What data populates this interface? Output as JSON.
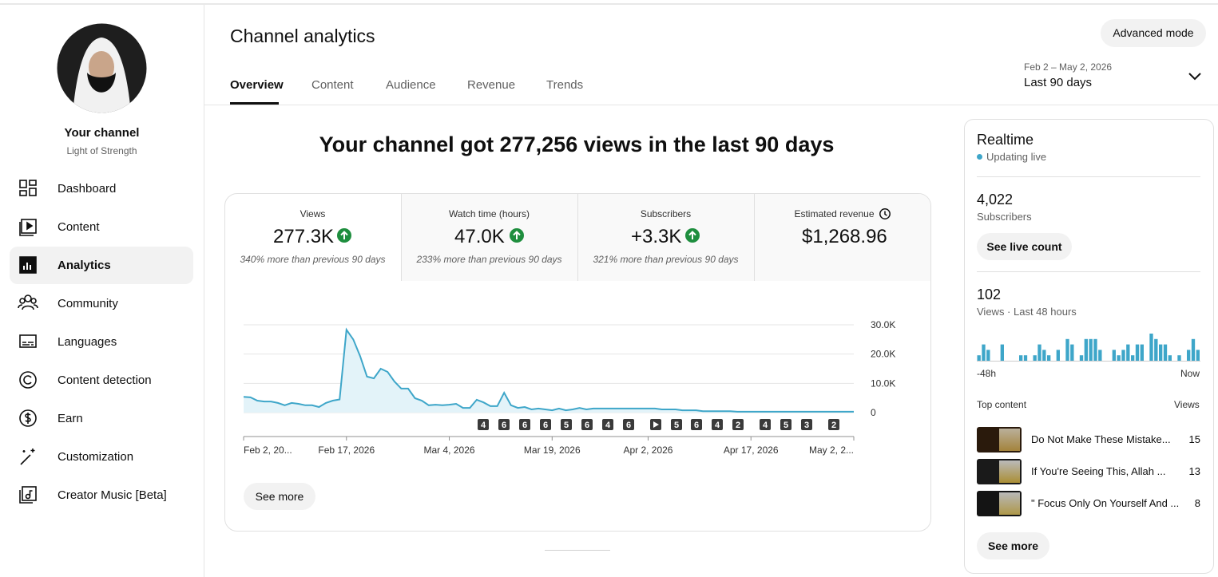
{
  "sidebar": {
    "title": "Your channel",
    "subtitle": "Light of Strength",
    "nav": [
      "Dashboard",
      "Content",
      "Analytics",
      "Community",
      "Languages",
      "Content detection",
      "Earn",
      "Customization",
      "Creator Music [Beta]"
    ]
  },
  "header": {
    "title": "Channel analytics",
    "button": "Advanced mode",
    "tabs": [
      "Overview",
      "Content",
      "Audience",
      "Revenue",
      "Trends"
    ],
    "date_range": "Feb 2 – May 2, 2026",
    "period": "Last 90 days"
  },
  "headline": "Your channel got 277,256 views in the last 90 days",
  "metrics": [
    {
      "label": "Views",
      "value": "277.3K",
      "note": "340% more than previous 90 days"
    },
    {
      "label": "Watch time (hours)",
      "value": "47.0K",
      "note": "233% more than previous 90 days"
    },
    {
      "label": "Subscribers",
      "value": "+3.3K",
      "note": "321% more than previous 90 days"
    },
    {
      "label": "Estimated revenue",
      "value": "$1,268.96"
    }
  ],
  "see_more": "See more",
  "realtime": {
    "title": "Realtime",
    "status": "Updating live",
    "subscribers": "4,022",
    "subscribers_label": "Subscribers",
    "live_button": "See live count",
    "views": "102",
    "views_label": "Views · Last 48 hours",
    "start_label": "-48h",
    "end_label": "Now",
    "top_label": "Top content",
    "top_views_label": "Views",
    "top": [
      {
        "title": "Do Not Make These Mistake...",
        "views": 15
      },
      {
        "title": "If You're Seeing This, Allah ...",
        "views": 13
      },
      {
        "title": "\" Focus Only On Yourself And ...",
        "views": 8
      }
    ],
    "see_more": "See more"
  },
  "chart_data": [
    {
      "type": "line",
      "color": "#3ea6c9",
      "fill": "#e3f3f9",
      "grid": true,
      "x": [
        "2026-02-02",
        "2026-02-03",
        "2026-02-04",
        "2026-02-05",
        "2026-02-06",
        "2026-02-07",
        "2026-02-08",
        "2026-02-09",
        "2026-02-10",
        "2026-02-11",
        "2026-02-12",
        "2026-02-13",
        "2026-02-14",
        "2026-02-15",
        "2026-02-16",
        "2026-02-17",
        "2026-02-18",
        "2026-02-19",
        "2026-02-20",
        "2026-02-21",
        "2026-02-22",
        "2026-02-23",
        "2026-02-24",
        "2026-02-25",
        "2026-02-26",
        "2026-02-27",
        "2026-02-28",
        "2026-03-01",
        "2026-03-02",
        "2026-03-03",
        "2026-03-04",
        "2026-03-05",
        "2026-03-06",
        "2026-03-07",
        "2026-03-08",
        "2026-03-09",
        "2026-03-10",
        "2026-03-11",
        "2026-03-12",
        "2026-03-13",
        "2026-03-14",
        "2026-03-15",
        "2026-03-16",
        "2026-03-17",
        "2026-03-18",
        "2026-03-19",
        "2026-03-20",
        "2026-03-21",
        "2026-03-22",
        "2026-03-23",
        "2026-03-24",
        "2026-03-25",
        "2026-03-26",
        "2026-03-27",
        "2026-03-28",
        "2026-03-29",
        "2026-03-30",
        "2026-03-31",
        "2026-04-01",
        "2026-04-02",
        "2026-04-03",
        "2026-04-04",
        "2026-04-05",
        "2026-04-06",
        "2026-04-07",
        "2026-04-08",
        "2026-04-09",
        "2026-04-10",
        "2026-04-11",
        "2026-04-12",
        "2026-04-13",
        "2026-04-14",
        "2026-04-15",
        "2026-04-16",
        "2026-04-17",
        "2026-04-18",
        "2026-04-19",
        "2026-04-20",
        "2026-04-21",
        "2026-04-22",
        "2026-04-23",
        "2026-04-24",
        "2026-04-25",
        "2026-04-26",
        "2026-04-27",
        "2026-04-28",
        "2026-04-29",
        "2026-04-30",
        "2026-05-01",
        "2026-05-02"
      ],
      "values": [
        5400,
        5200,
        4100,
        3800,
        3800,
        3300,
        2500,
        3300,
        3000,
        2500,
        2500,
        1900,
        3300,
        4100,
        4500,
        28300,
        25000,
        19300,
        12300,
        11700,
        15000,
        13900,
        10600,
        8200,
        8200,
        4900,
        4100,
        2500,
        2700,
        2500,
        2700,
        3000,
        1600,
        1600,
        4400,
        3500,
        2200,
        2200,
        6800,
        2500,
        1600,
        1900,
        1100,
        1400,
        1100,
        800,
        1400,
        800,
        1100,
        1600,
        1100,
        1400,
        1400,
        1400,
        1400,
        1400,
        1400,
        1400,
        1400,
        1400,
        1400,
        1100,
        1100,
        1100,
        800,
        800,
        800,
        500,
        500,
        500,
        500,
        500,
        300,
        300,
        300,
        300,
        300,
        300,
        300,
        300,
        300,
        300,
        300,
        300,
        300,
        300,
        300,
        300,
        300,
        300
      ],
      "xlim": [
        "2026-02-02",
        "2026-05-02"
      ],
      "xticks": [
        {
          "value": "2026-02-02",
          "label": "Feb 2, 20..."
        },
        {
          "value": "2026-02-17",
          "label": "Feb 17, 2026"
        },
        {
          "value": "2026-03-04",
          "label": "Mar 4, 2026"
        },
        {
          "value": "2026-03-19",
          "label": "Mar 19, 2026"
        },
        {
          "value": "2026-04-02",
          "label": "Apr 2, 2026"
        },
        {
          "value": "2026-04-17",
          "label": "Apr 17, 2026"
        },
        {
          "value": "2026-05-02",
          "label": "May 2, 2..."
        }
      ],
      "ylim": [
        0,
        30000
      ],
      "yticks": [
        0,
        {
          "value": 10000,
          "label": "10.0K"
        },
        {
          "value": 20000,
          "label": "20.0K"
        },
        {
          "value": 30000,
          "label": "30.0K"
        }
      ],
      "markers": [
        "4",
        "6",
        "6",
        "6",
        "5",
        "6",
        "4",
        "6",
        null,
        "5",
        "6",
        "4",
        "2",
        "4",
        "5",
        "3",
        "2"
      ]
    },
    {
      "type": "bar",
      "color": "#3ea6c9",
      "values": [
        1,
        3,
        2,
        0,
        0,
        3,
        0,
        0,
        0,
        1,
        1,
        0,
        1,
        3,
        2,
        1,
        0,
        2,
        0,
        4,
        3,
        0,
        1,
        4,
        4,
        4,
        2,
        0,
        0,
        2,
        1,
        2,
        3,
        1,
        3,
        3,
        0,
        5,
        4,
        3,
        3,
        1,
        0,
        1,
        0,
        2,
        4,
        2
      ]
    }
  ]
}
